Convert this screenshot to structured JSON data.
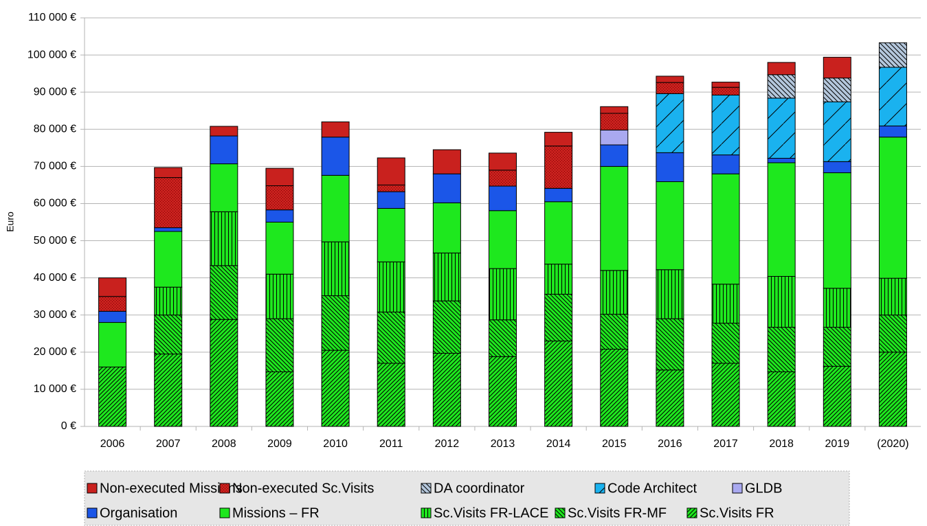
{
  "chart_data": {
    "type": "bar",
    "stacked": true,
    "y_label": "Euro",
    "categories": [
      "2006",
      "2007",
      "2008",
      "2009",
      "2010",
      "2011",
      "2012",
      "2013",
      "2014",
      "2015",
      "2016",
      "2017",
      "2018",
      "2019",
      "(2020)"
    ],
    "ylim": [
      0,
      110000
    ],
    "yticks": [
      {
        "value": 0,
        "label": "0 €"
      },
      {
        "value": 10000,
        "label": "10 000 €"
      },
      {
        "value": 20000,
        "label": "20 000 €"
      },
      {
        "value": 30000,
        "label": "30 000 €"
      },
      {
        "value": 40000,
        "label": "40 000 €"
      },
      {
        "value": 50000,
        "label": "50 000 €"
      },
      {
        "value": 60000,
        "label": "60 000 €"
      },
      {
        "value": 70000,
        "label": "70 000 €"
      },
      {
        "value": 80000,
        "label": "80 000 €"
      },
      {
        "value": 90000,
        "label": "90 000 €"
      },
      {
        "value": 100000,
        "label": "100 000 €"
      },
      {
        "value": 110000,
        "label": "110 000 €"
      }
    ],
    "grid": true,
    "legend": "bottom",
    "series": [
      {
        "name": "Non-executed Missions",
        "color": "#c9211e",
        "values": [
          5000,
          2700,
          2600,
          4700,
          4100,
          7300,
          6500,
          4600,
          3700,
          1800,
          1700,
          1400,
          3300,
          5600,
          0
        ]
      },
      {
        "name": "Non-executed Sc.Visits",
        "color": "#c9211e",
        "hatch": "dots",
        "values": [
          4000,
          13500,
          0,
          6500,
          0,
          1800,
          0,
          4300,
          11400,
          4500,
          3000,
          2100,
          0,
          0,
          0
        ]
      },
      {
        "name": "DA coordinator",
        "color": "#b4c7dc",
        "hatch": "dense-backslash",
        "values": [
          0,
          0,
          0,
          0,
          0,
          0,
          0,
          0,
          0,
          0,
          0,
          0,
          6300,
          6400,
          6600
        ]
      },
      {
        "name": "Code Architect",
        "color": "#1ab2ef",
        "hatch": "sparse-slash",
        "values": [
          0,
          0,
          0,
          0,
          0,
          0,
          0,
          0,
          0,
          0,
          15900,
          16100,
          16200,
          16100,
          15800
        ]
      },
      {
        "name": "GLDB",
        "color": "#a9a9f0",
        "values": [
          0,
          0,
          0,
          0,
          0,
          0,
          0,
          0,
          0,
          4000,
          0,
          0,
          0,
          0,
          0
        ]
      },
      {
        "name": "Organisation",
        "color": "#1b56e8",
        "values": [
          3000,
          1000,
          7500,
          3300,
          10300,
          4500,
          7800,
          6600,
          3600,
          5800,
          7800,
          5100,
          1200,
          3000,
          3000
        ]
      },
      {
        "name": "Missions – FR",
        "color": "#1ee81e",
        "values": [
          12000,
          15000,
          12900,
          14000,
          17900,
          14400,
          13500,
          15600,
          16800,
          28000,
          23700,
          29700,
          30600,
          31100,
          38000
        ]
      },
      {
        "name": "Sc.Visits FR-LACE",
        "color": "#1ee81e",
        "hatch": "vertical",
        "values": [
          0,
          7500,
          14500,
          12000,
          14500,
          13500,
          12900,
          13800,
          8100,
          11800,
          13200,
          10500,
          13700,
          10500,
          9900
        ]
      },
      {
        "name": "Sc.Visits FR-MF",
        "color": "#1ee81e",
        "hatch": "backslash",
        "values": [
          0,
          10500,
          14500,
          14300,
          14700,
          13800,
          14100,
          9900,
          12600,
          9400,
          13800,
          10800,
          12000,
          10500,
          10000
        ]
      },
      {
        "name": "Sc.Visits FR",
        "color": "#1ee81e",
        "hatch": "slash",
        "values": [
          16000,
          19500,
          28800,
          14700,
          20500,
          17000,
          19700,
          18800,
          23000,
          20800,
          15200,
          17000,
          14700,
          16200,
          20000
        ]
      }
    ]
  }
}
